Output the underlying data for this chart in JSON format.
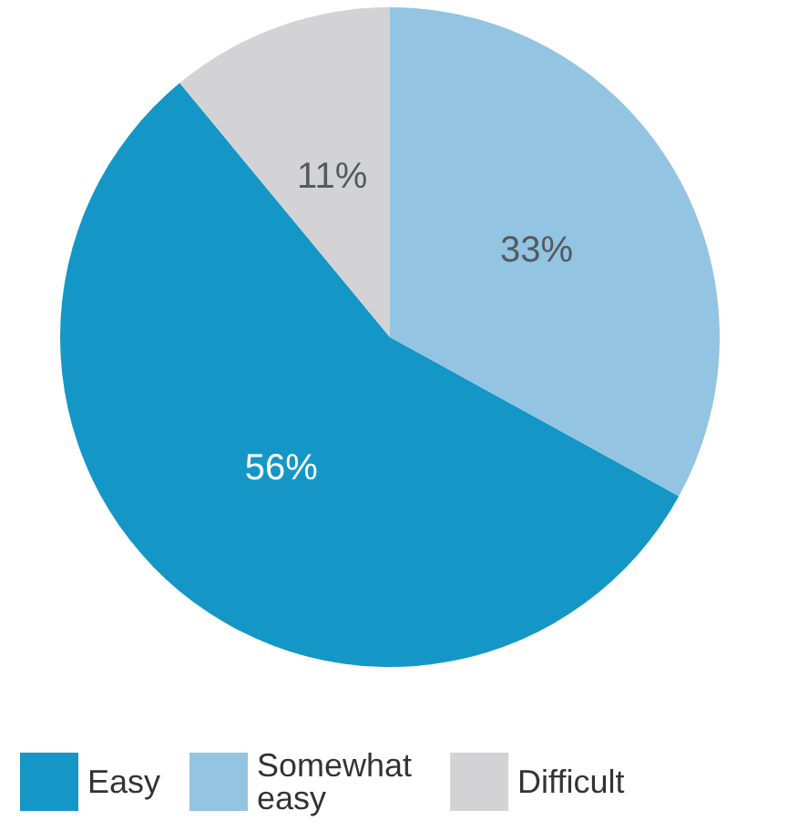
{
  "chart_data": {
    "type": "pie",
    "categories": [
      "Easy",
      "Somewhat easy",
      "Difficult"
    ],
    "values": [
      56,
      33,
      11
    ],
    "colors": [
      "#1497c6",
      "#93c4e2",
      "#d3d3d6"
    ],
    "value_labels": [
      "56%",
      "33%",
      "11%"
    ],
    "legend": "bottom"
  }
}
